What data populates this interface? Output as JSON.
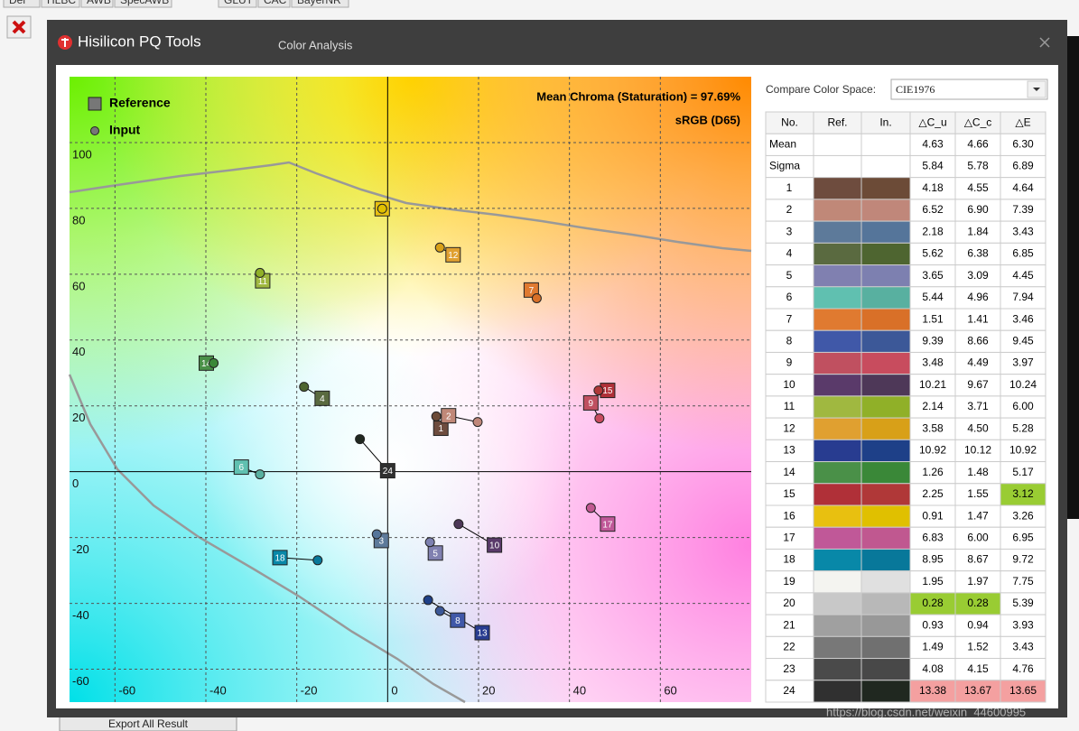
{
  "top_tabs": [
    "Del",
    "HLBC",
    "AWB",
    "SpecAWB",
    "GLUT",
    "CAC",
    "BayerNR"
  ],
  "window": {
    "app_title": "Hisilicon PQ Tools",
    "tab_title": "Color Analysis"
  },
  "chart_data": {
    "type": "scatter",
    "annotations": [
      "Mean Chroma (Staturation) = 97.69%",
      "sRGB (D65)"
    ],
    "labels": [
      "1",
      "2",
      "3",
      "4",
      "5",
      "6",
      "7",
      "8",
      "9",
      "10",
      "11",
      "12",
      "13",
      "14",
      "15",
      "16",
      "17",
      "18",
      "24"
    ],
    "xlim": [
      -70,
      80
    ],
    "ylim": [
      -70,
      120
    ],
    "xticks": [
      -60,
      -40,
      -20,
      0,
      20,
      40,
      60
    ],
    "yticks": [
      -60,
      -40,
      -20,
      0,
      20,
      40,
      60,
      80,
      100
    ],
    "grid": true,
    "series": [
      {
        "name": "Reference",
        "marker": "square",
        "colors": [
          "#6e4c3e",
          "#c08878",
          "#5d7a9a",
          "#5a6a40",
          "#8080b0",
          "#60c0b0",
          "#e07a30",
          "#4058a8",
          "#c05060",
          "#5a3a6a",
          "#a0b840",
          "#e0a030",
          "#283c90",
          "#4a9048",
          "#b03038",
          "#e8c010",
          "#c05898",
          "#0888a8",
          "#303030"
        ],
        "x": [
          11.7,
          13.4,
          -1.4,
          -14.4,
          10.5,
          -32.2,
          31.6,
          15.4,
          44.7,
          23.5,
          -27.5,
          14.4,
          20.8,
          -39.9,
          48.4,
          -1.2,
          48.4,
          -23.7,
          0
        ],
        "y": [
          13.2,
          17.0,
          -20.9,
          22.3,
          -24.7,
          1.4,
          55.2,
          -45.1,
          20.9,
          -22.3,
          58,
          65.9,
          -48.9,
          33,
          24.7,
          79.9,
          -15.9,
          -26.1,
          0.3
        ]
      },
      {
        "name": "Input",
        "marker": "circle",
        "colors": [
          "#6c4b37",
          "#c0877a",
          "#55759a",
          "#4e6530",
          "#7d80b0",
          "#58b0a0",
          "#d97028",
          "#3c5898",
          "#c84c5e",
          "#4e3858",
          "#90b028",
          "#d8a018",
          "#1e4088",
          "#3a8838",
          "#b03838",
          "#e0c000",
          "#c05890",
          "#08789a",
          "#202820"
        ],
        "x": [
          10.7,
          19.8,
          -2.4,
          -18.4,
          9.3,
          -28.1,
          32.8,
          11.5,
          46.6,
          15.6,
          -28.1,
          11.5,
          8.9,
          -38.3,
          46.4,
          -1.2,
          44.7,
          -15.4,
          -6.1
        ],
        "y": [
          16.8,
          15.1,
          -19,
          25.8,
          -21.4,
          -0.8,
          52.7,
          -42.3,
          16.2,
          -15.9,
          60.4,
          68.1,
          -39,
          33,
          24.7,
          79.9,
          -11,
          -26.9,
          9.9
        ]
      }
    ]
  },
  "compare": {
    "label": "Compare Color Space:",
    "value": "CIE1976"
  },
  "table": {
    "headers": [
      "No.",
      "Ref.",
      "In.",
      "△C_u",
      "△C_c",
      "△E"
    ],
    "rows": [
      {
        "no": "Mean",
        "values": [
          "4.63",
          "4.66",
          "6.30"
        ]
      },
      {
        "no": "Sigma",
        "values": [
          "5.84",
          "5.78",
          "6.89"
        ]
      },
      {
        "no": "1",
        "ref": "#6e4c3e",
        "in": "#6c4b37",
        "values": [
          "4.18",
          "4.55",
          "4.64"
        ]
      },
      {
        "no": "2",
        "ref": "#c08878",
        "in": "#c0877a",
        "values": [
          "6.52",
          "6.90",
          "7.39"
        ]
      },
      {
        "no": "3",
        "ref": "#5d7a9a",
        "in": "#55759a",
        "values": [
          "2.18",
          "1.84",
          "3.43"
        ]
      },
      {
        "no": "4",
        "ref": "#5a6a40",
        "in": "#4e6530",
        "values": [
          "5.62",
          "6.38",
          "6.85"
        ]
      },
      {
        "no": "5",
        "ref": "#8080b0",
        "in": "#7d80b0",
        "values": [
          "3.65",
          "3.09",
          "4.45"
        ]
      },
      {
        "no": "6",
        "ref": "#60c0b0",
        "in": "#58b0a0",
        "values": [
          "5.44",
          "4.96",
          "7.94"
        ]
      },
      {
        "no": "7",
        "ref": "#e07a30",
        "in": "#d97028",
        "values": [
          "1.51",
          "1.41",
          "3.46"
        ]
      },
      {
        "no": "8",
        "ref": "#4058a8",
        "in": "#3c5898",
        "values": [
          "9.39",
          "8.66",
          "9.45"
        ]
      },
      {
        "no": "9",
        "ref": "#c05060",
        "in": "#c84c5e",
        "values": [
          "3.48",
          "4.49",
          "3.97"
        ]
      },
      {
        "no": "10",
        "ref": "#5a3a6a",
        "in": "#4e3858",
        "values": [
          "10.21",
          "9.67",
          "10.24"
        ]
      },
      {
        "no": "11",
        "ref": "#a0b840",
        "in": "#90b028",
        "values": [
          "2.14",
          "3.71",
          "6.00"
        ]
      },
      {
        "no": "12",
        "ref": "#e0a030",
        "in": "#d8a018",
        "values": [
          "3.58",
          "4.50",
          "5.28"
        ]
      },
      {
        "no": "13",
        "ref": "#283c90",
        "in": "#1e4088",
        "values": [
          "10.92",
          "10.12",
          "10.92"
        ]
      },
      {
        "no": "14",
        "ref": "#4a9048",
        "in": "#3a8838",
        "values": [
          "1.26",
          "1.48",
          "5.17"
        ]
      },
      {
        "no": "15",
        "ref": "#b03038",
        "in": "#b03838",
        "values": [
          "2.25",
          "1.55",
          "3.12"
        ],
        "highlight": [
          "#99cc33",
          2
        ]
      },
      {
        "no": "16",
        "ref": "#e8c010",
        "in": "#e0c000",
        "values": [
          "0.91",
          "1.47",
          "3.26"
        ]
      },
      {
        "no": "17",
        "ref": "#c05898",
        "in": "#c05890",
        "values": [
          "6.83",
          "6.00",
          "6.95"
        ]
      },
      {
        "no": "18",
        "ref": "#0888a8",
        "in": "#08789a",
        "values": [
          "8.95",
          "8.67",
          "9.72"
        ]
      },
      {
        "no": "19",
        "ref": "#f4f4f0",
        "in": "#e0e0e0",
        "values": [
          "1.95",
          "1.97",
          "7.75"
        ]
      },
      {
        "no": "20",
        "ref": "#c8c8c8",
        "in": "#b8b8b8",
        "values": [
          "0.28",
          "0.28",
          "5.39"
        ],
        "highlight": [
          "#99cc33",
          0,
          1
        ]
      },
      {
        "no": "21",
        "ref": "#a0a0a0",
        "in": "#989898",
        "values": [
          "0.93",
          "0.94",
          "3.93"
        ]
      },
      {
        "no": "22",
        "ref": "#787878",
        "in": "#707070",
        "values": [
          "1.49",
          "1.52",
          "3.43"
        ]
      },
      {
        "no": "23",
        "ref": "#4a4a4a",
        "in": "#484848",
        "values": [
          "4.08",
          "4.15",
          "4.76"
        ]
      },
      {
        "no": "24",
        "ref": "#303030",
        "in": "#202820",
        "values": [
          "13.38",
          "13.67",
          "13.65"
        ],
        "highlight": [
          "#f4a0a0",
          0,
          1,
          2
        ]
      }
    ]
  },
  "export_button": "Export All Result",
  "watermark": "https://blog.csdn.net/weixin_44600995"
}
